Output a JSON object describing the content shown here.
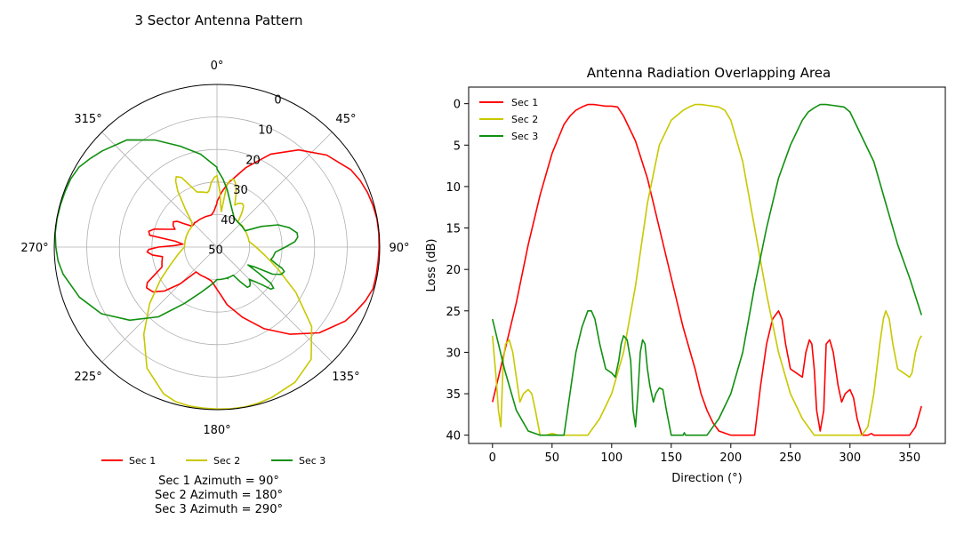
{
  "colors": {
    "sec1": "#ff0000",
    "sec2": "#c8c800",
    "sec3": "#109010"
  },
  "chart_data": [
    {
      "type": "polar-line",
      "title": "3 Sector Antenna Pattern",
      "theta_direction": "clockwise",
      "theta_zero": "north",
      "theta_ticks": [
        "0°",
        "45°",
        "90°",
        "135°",
        "180°",
        "225°",
        "270°",
        "315°"
      ],
      "theta_tick_values": [
        0,
        45,
        90,
        135,
        180,
        225,
        270,
        315
      ],
      "r_ticks": [
        "0",
        "10",
        "20",
        "30",
        "40",
        "50"
      ],
      "r_tick_values": [
        0,
        10,
        20,
        30,
        40,
        50
      ],
      "r_range_loss_db": [
        0,
        50
      ],
      "r_inverted": true,
      "grid": true,
      "legend": {
        "placement": "bottom",
        "entries": [
          "Sec 1",
          "Sec 2",
          "Sec 3"
        ]
      },
      "annotations": [
        "Sec 1 Azimuth = 90°",
        "Sec 2 Azimuth = 180°",
        "Sec 3 Azimuth = 290°"
      ]
    },
    {
      "type": "line",
      "title": "Antenna Radiation Overlapping Area",
      "xlabel": "Direction (°)",
      "ylabel": "Loss (dB)",
      "xlim": [
        -20,
        380
      ],
      "ylim": [
        41,
        -2
      ],
      "xticks": [
        0,
        50,
        100,
        150,
        200,
        250,
        300,
        350
      ],
      "yticks": [
        0,
        5,
        10,
        15,
        20,
        25,
        30,
        35,
        40
      ],
      "legend": {
        "placement": "top-left",
        "entries": [
          "Sec 1",
          "Sec 2",
          "Sec 3"
        ]
      },
      "series": [
        {
          "name": "Sec 1",
          "x": [
            0,
            5,
            10,
            20,
            30,
            40,
            50,
            60,
            65,
            70,
            75,
            80,
            85,
            90,
            95,
            100,
            105,
            110,
            115,
            120,
            130,
            140,
            150,
            160,
            170,
            175,
            180,
            185,
            190,
            200,
            210,
            220,
            225,
            230,
            235,
            240,
            243,
            246,
            250,
            255,
            260,
            263,
            266,
            268,
            270,
            272,
            275,
            278,
            280,
            283,
            286,
            290,
            293,
            296,
            300,
            303,
            306,
            310,
            312,
            315,
            318,
            320,
            325,
            330,
            340,
            350,
            355,
            360
          ],
          "y": [
            36,
            33,
            30,
            24,
            17,
            11,
            6,
            2.5,
            1.5,
            0.8,
            0.4,
            0.1,
            0.1,
            0.2,
            0.3,
            0.3,
            0.4,
            1.5,
            3,
            4.5,
            9,
            15,
            21,
            27,
            32,
            35,
            37,
            38.5,
            39.5,
            40,
            40,
            40,
            34,
            29,
            26,
            25,
            26,
            29,
            32,
            32.5,
            33,
            30,
            28.5,
            29,
            32,
            37,
            39.5,
            37,
            29,
            28.5,
            30,
            34,
            36,
            35,
            34.5,
            35.5,
            38,
            40,
            40,
            40,
            39.8,
            40,
            40,
            40,
            40,
            40,
            39,
            36.5
          ]
        },
        {
          "name": "Sec 2",
          "x": [
            0,
            3,
            5,
            7,
            9,
            11,
            14,
            17,
            20,
            23,
            26,
            30,
            33,
            36,
            40,
            45,
            50,
            55,
            60,
            65,
            70,
            75,
            80,
            90,
            100,
            110,
            120,
            130,
            140,
            150,
            160,
            165,
            170,
            175,
            180,
            185,
            190,
            195,
            200,
            210,
            220,
            230,
            240,
            250,
            260,
            270,
            280,
            290,
            300,
            310,
            315,
            320,
            325,
            328,
            330,
            333,
            336,
            340,
            345,
            350,
            352,
            355,
            358,
            360
          ],
          "y": [
            28,
            33,
            37,
            39,
            31,
            29,
            28.5,
            30,
            33,
            36,
            35,
            34.5,
            35,
            37,
            40,
            40,
            39.8,
            40,
            40,
            40,
            40,
            40,
            40,
            38,
            35,
            30,
            22,
            12,
            5,
            2,
            0.8,
            0.4,
            0.1,
            0.1,
            0.2,
            0.3,
            0.4,
            0.8,
            2,
            7,
            15,
            23,
            30,
            35,
            38,
            40,
            40,
            40,
            40,
            40,
            39,
            35,
            29,
            26,
            25,
            26,
            29,
            32,
            32.5,
            33,
            32.5,
            30,
            28.5,
            28
          ]
        },
        {
          "name": "Sec 3",
          "x": [
            0,
            5,
            10,
            20,
            30,
            40,
            50,
            60,
            65,
            70,
            75,
            80,
            83,
            86,
            90,
            95,
            100,
            103,
            106,
            108,
            110,
            113,
            116,
            118,
            119,
            120,
            122,
            124,
            126,
            128,
            130,
            132,
            135,
            137,
            140,
            143,
            146,
            150,
            155,
            160,
            161,
            162,
            165,
            170,
            175,
            180,
            185,
            190,
            200,
            210,
            220,
            230,
            240,
            250,
            260,
            265,
            270,
            275,
            280,
            285,
            290,
            295,
            300,
            305,
            310,
            320,
            330,
            340,
            350,
            360
          ],
          "y": [
            26,
            29,
            32,
            37,
            39.5,
            40,
            40,
            40,
            35,
            30,
            27,
            25,
            25,
            26,
            29,
            32,
            32.5,
            33,
            31,
            29,
            28,
            28.5,
            31,
            37,
            38,
            39,
            35,
            30,
            28.5,
            29,
            32,
            34,
            36,
            35,
            34.3,
            34.5,
            37,
            40,
            40,
            40,
            39.7,
            40,
            40,
            40,
            40,
            40,
            39,
            38,
            35,
            30,
            22,
            15,
            9,
            5,
            2,
            1,
            0.5,
            0.1,
            0.1,
            0.2,
            0.3,
            0.4,
            1,
            2.5,
            4,
            7,
            12,
            17,
            21,
            25.5
          ]
        }
      ]
    }
  ]
}
